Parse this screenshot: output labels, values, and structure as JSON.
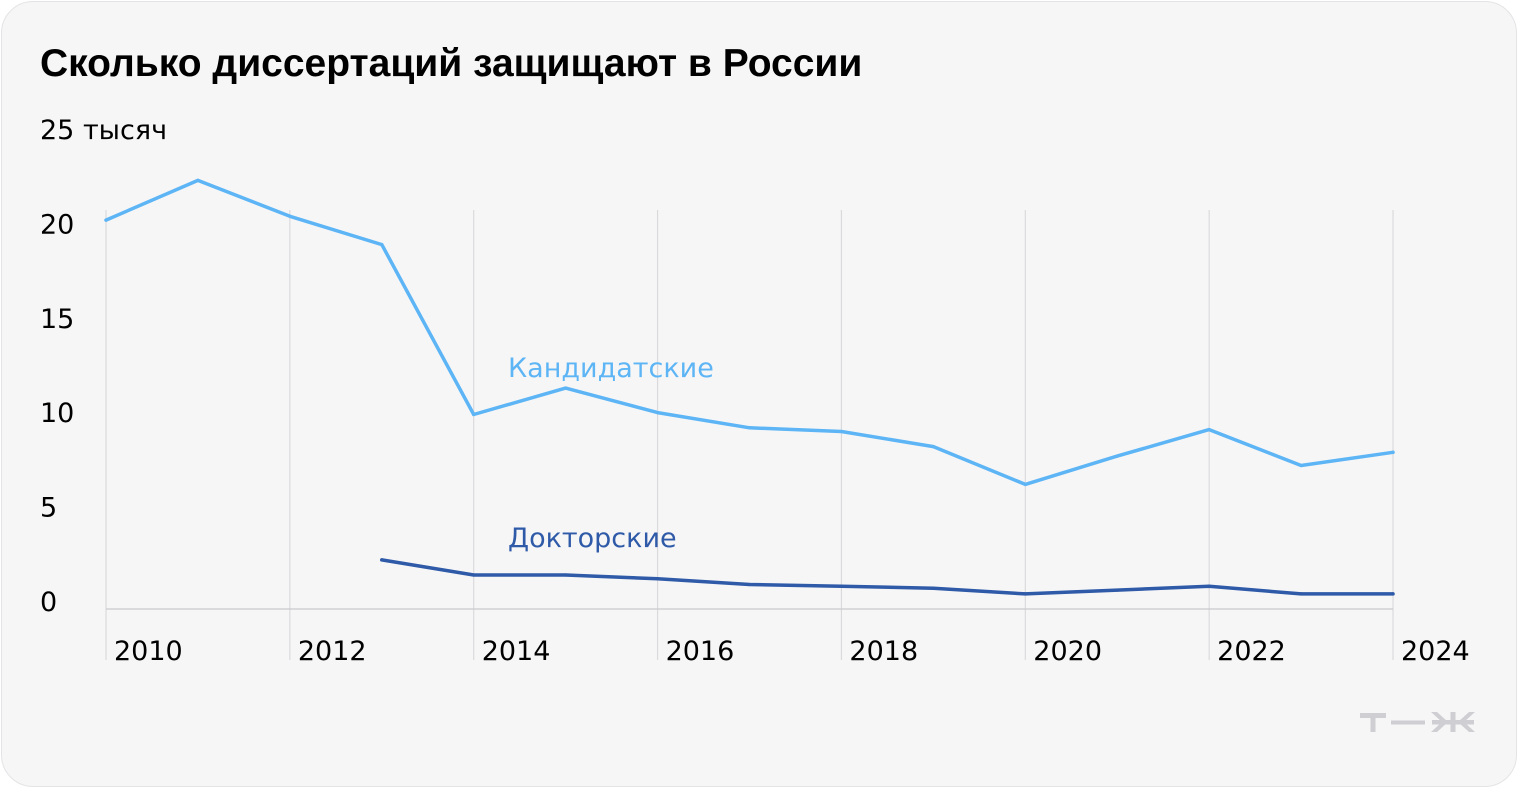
{
  "chart_data": {
    "type": "line",
    "title": "Сколько диссертаций защищают в России",
    "y_unit_label": "тысяч",
    "x": [
      2010,
      2011,
      2012,
      2013,
      2014,
      2015,
      2016,
      2017,
      2018,
      2019,
      2020,
      2021,
      2022,
      2023,
      2024
    ],
    "x_ticks": [
      2010,
      2012,
      2014,
      2016,
      2018,
      2020,
      2022,
      2024
    ],
    "y_ticks": [
      0,
      5,
      10,
      15,
      20,
      25
    ],
    "ylim": [
      0,
      25
    ],
    "xlim": [
      2010,
      2024
    ],
    "grid": "vertical lines at labelled years",
    "series": [
      {
        "name": "Кандидатские",
        "color": "#5db5f5",
        "values": [
          20.6,
          22.7,
          20.8,
          19.3,
          10.3,
          11.7,
          10.4,
          9.6,
          9.4,
          8.6,
          6.6,
          8.1,
          9.5,
          7.6,
          8.3
        ]
      },
      {
        "name": "Докторские",
        "color": "#2e5aa8",
        "values": [
          null,
          null,
          null,
          2.6,
          1.8,
          1.8,
          1.6,
          1.3,
          1.2,
          1.1,
          0.8,
          1.0,
          1.2,
          0.8,
          0.8
        ]
      }
    ]
  },
  "brand": {
    "logo_icon": "tzh-logo-icon",
    "logo_color": "#cfcfd3"
  }
}
